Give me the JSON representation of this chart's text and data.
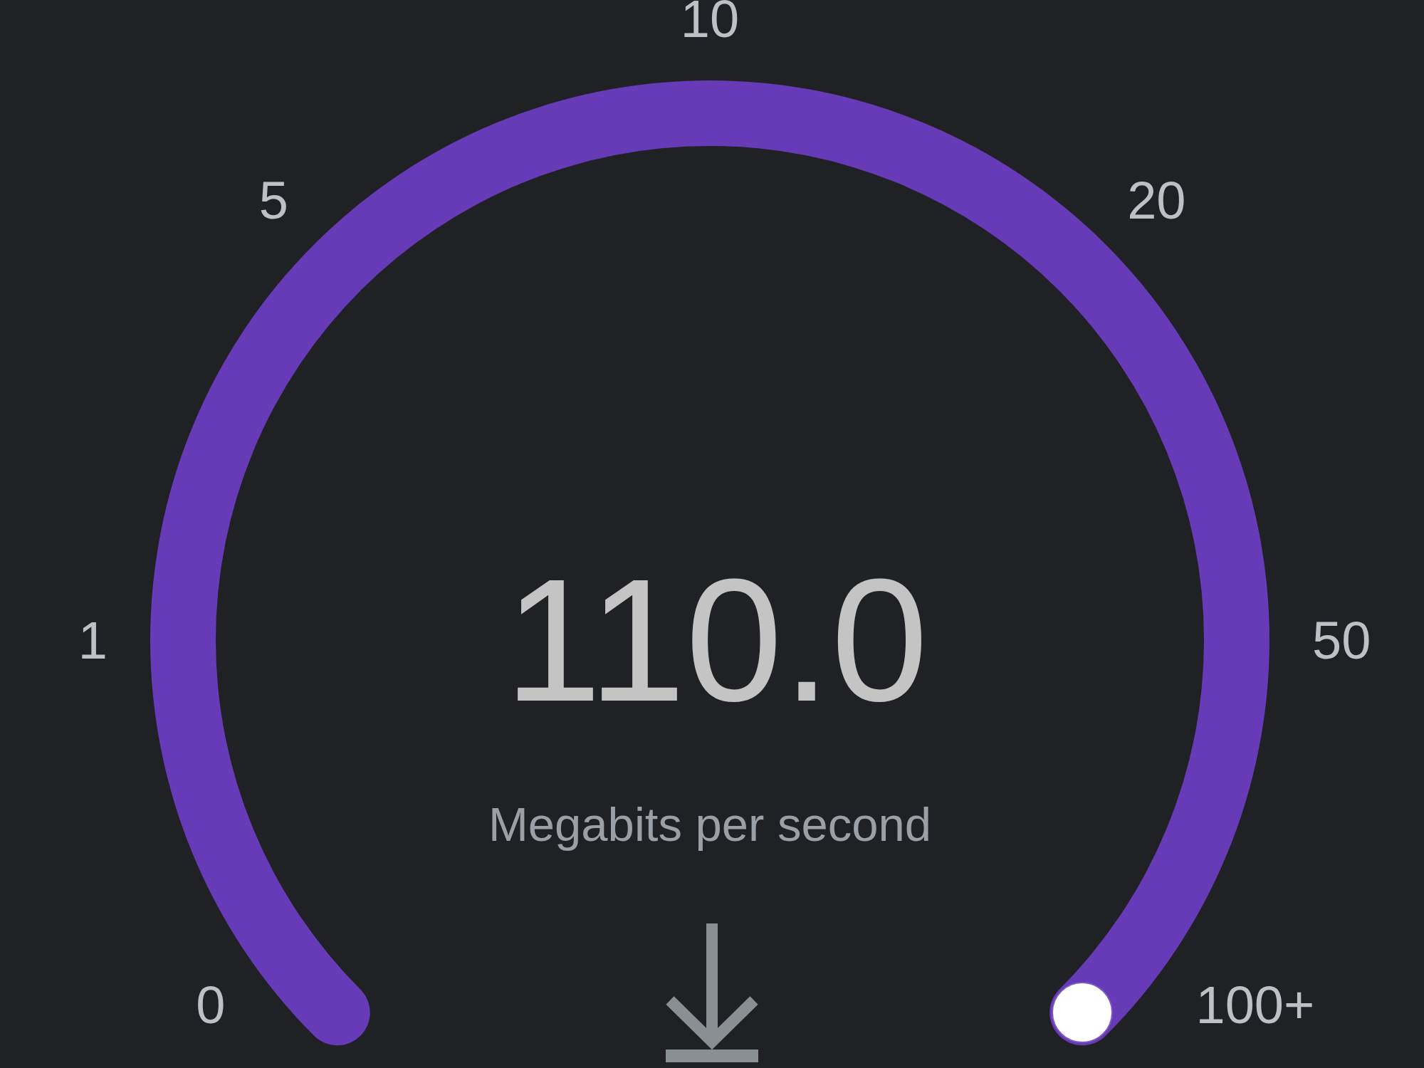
{
  "chart_data": {
    "type": "other",
    "ylabel": "Megabits per second",
    "annotations": [
      "0",
      "1",
      "5",
      "10",
      "20",
      "50",
      "100+"
    ],
    "values": [
      110.0
    ],
    "value_labels": [
      "110.0"
    ],
    "color": "#673ab7"
  }
}
